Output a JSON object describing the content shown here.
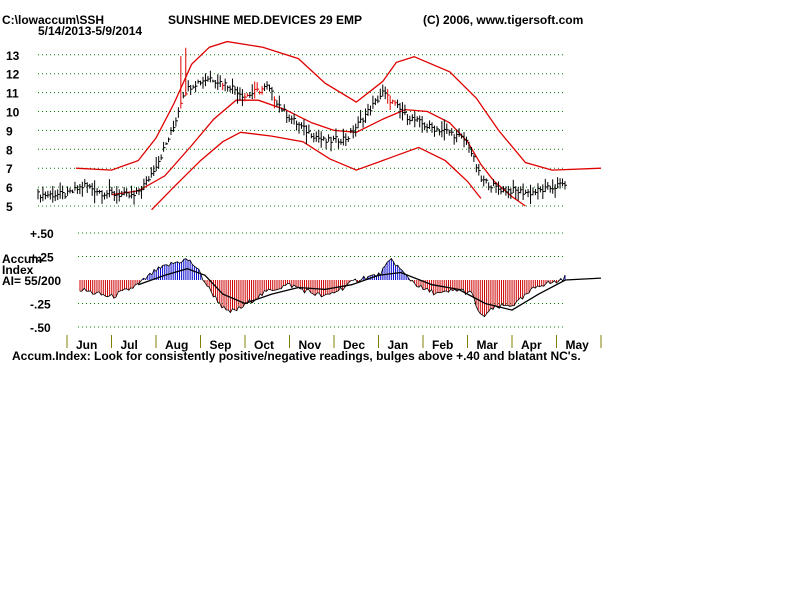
{
  "header": {
    "path": "C:\\lowaccum\\SSH",
    "date_range": "5/14/2013-5/9/2014",
    "title": "SUNSHINE MED.DEVICES 29 EMP",
    "copyright": "(C) 2006, www.tigersoft.com"
  },
  "colors": {
    "price_bars": "#000000",
    "up_spike": "#e00000",
    "bands": "#e00000",
    "moving_average": "#e00000",
    "grid": "#008000",
    "accum_positive": "#0000cc",
    "accum_negative": "#cc0000",
    "accum_ma": "#000000",
    "month_ticks": "#808000"
  },
  "chart_data": [
    {
      "type": "line",
      "name": "price",
      "y_ticks": [
        "5",
        "6",
        "7",
        "8",
        "9",
        "10",
        "11",
        "12",
        "13"
      ],
      "ylim": [
        5,
        13.9
      ],
      "grid": true,
      "x_labels": [
        "Jun",
        "Jul",
        "Aug",
        "Sep",
        "Oct",
        "Nov",
        "Dec",
        "Jan",
        "Feb",
        "Mar",
        "Apr",
        "May"
      ],
      "month_index": [
        0,
        1,
        2,
        3,
        4,
        5,
        6,
        7,
        8,
        9,
        10,
        11,
        12
      ],
      "close_knots": [
        5.6,
        6.1,
        5.7,
        5.6,
        5.5,
        6.3,
        7.6,
        9.2,
        10.9,
        11.4,
        11.8,
        11.3,
        10.8,
        11.3,
        9.9,
        9.1,
        8.4,
        8.6,
        9.8,
        11.0,
        9.8,
        9.2,
        8.9,
        8.4,
        6.4,
        5.9,
        5.7,
        5.9,
        6.2,
        5.6
      ],
      "knot_month_index": [
        0,
        0.4,
        0.8,
        1.2,
        1.5,
        1.8,
        2.1,
        2.4,
        2.6,
        2.8,
        3.2,
        3.7,
        4.0,
        4.5,
        4.9,
        5.3,
        5.8,
        6.3,
        6.7,
        7.1,
        7.6,
        8.1,
        8.6,
        9.0,
        9.3,
        9.7,
        10.4,
        10.8,
        11.2,
        11.6
      ],
      "upper_band": [
        [
          0.2,
          7.0
        ],
        [
          1.0,
          6.9
        ],
        [
          1.6,
          7.4
        ],
        [
          2.0,
          8.6
        ],
        [
          2.4,
          10.4
        ],
        [
          2.8,
          12.5
        ],
        [
          3.2,
          13.4
        ],
        [
          3.6,
          13.7
        ],
        [
          4.4,
          13.4
        ],
        [
          5.2,
          12.8
        ],
        [
          5.8,
          11.5
        ],
        [
          6.5,
          10.5
        ],
        [
          7.1,
          11.6
        ],
        [
          7.4,
          12.6
        ],
        [
          7.8,
          12.9
        ],
        [
          8.6,
          12.1
        ],
        [
          9.2,
          10.7
        ],
        [
          9.7,
          9.0
        ],
        [
          10.3,
          7.3
        ],
        [
          10.9,
          6.9
        ],
        [
          12.0,
          7.0
        ]
      ],
      "moving_average": [
        [
          1.0,
          5.6
        ],
        [
          1.6,
          5.8
        ],
        [
          2.2,
          6.6
        ],
        [
          2.8,
          8.2
        ],
        [
          3.3,
          9.6
        ],
        [
          3.8,
          10.6
        ],
        [
          4.3,
          10.6
        ],
        [
          4.9,
          10.1
        ],
        [
          5.5,
          9.4
        ],
        [
          6.0,
          9.0
        ],
        [
          6.5,
          8.9
        ],
        [
          7.1,
          9.6
        ],
        [
          7.6,
          10.1
        ],
        [
          8.1,
          10.0
        ],
        [
          8.6,
          9.4
        ],
        [
          9.0,
          8.4
        ],
        [
          9.3,
          7.2
        ],
        [
          9.6,
          6.3
        ],
        [
          10.0,
          5.5
        ],
        [
          10.3,
          5.0
        ]
      ],
      "lower_band": [
        [
          1.9,
          4.8
        ],
        [
          2.4,
          6.0
        ],
        [
          3.0,
          7.4
        ],
        [
          3.5,
          8.4
        ],
        [
          3.9,
          8.9
        ],
        [
          4.6,
          8.7
        ],
        [
          5.3,
          8.4
        ],
        [
          5.9,
          7.5
        ],
        [
          6.5,
          6.9
        ],
        [
          7.2,
          7.5
        ],
        [
          7.9,
          8.1
        ],
        [
          8.5,
          7.4
        ],
        [
          9.0,
          6.3
        ],
        [
          9.3,
          5.4
        ]
      ]
    },
    {
      "type": "bar",
      "name": "accumulation",
      "title": "Accum Index",
      "ai_label": "AI= 55/200",
      "y_ticks": [
        "+.50",
        "+.25",
        "-.25",
        "-.50"
      ],
      "ylim": [
        -0.53,
        0.53
      ],
      "knots": [
        [
          0.0,
          -0.05
        ],
        [
          0.3,
          -0.1
        ],
        [
          0.7,
          -0.15
        ],
        [
          1.0,
          -0.18
        ],
        [
          1.3,
          -0.12
        ],
        [
          1.6,
          -0.05
        ],
        [
          2.0,
          0.1
        ],
        [
          2.4,
          0.18
        ],
        [
          2.7,
          0.22
        ],
        [
          2.9,
          0.14
        ],
        [
          3.2,
          -0.1
        ],
        [
          3.6,
          -0.35
        ],
        [
          3.9,
          -0.3
        ],
        [
          4.2,
          -0.2
        ],
        [
          4.6,
          -0.1
        ],
        [
          5.0,
          -0.05
        ],
        [
          5.4,
          -0.12
        ],
        [
          5.8,
          -0.18
        ],
        [
          6.2,
          -0.08
        ],
        [
          6.6,
          0.02
        ],
        [
          7.0,
          0.05
        ],
        [
          7.3,
          0.22
        ],
        [
          7.6,
          0.05
        ],
        [
          8.0,
          -0.1
        ],
        [
          8.4,
          -0.15
        ],
        [
          8.8,
          -0.1
        ],
        [
          9.1,
          -0.15
        ],
        [
          9.3,
          -0.4
        ],
        [
          9.6,
          -0.3
        ],
        [
          10.1,
          -0.25
        ],
        [
          10.6,
          -0.05
        ],
        [
          11.0,
          -0.02
        ],
        [
          11.4,
          0.08
        ],
        [
          11.8,
          0.05
        ],
        [
          12.0,
          -0.06
        ]
      ],
      "ma_knots": [
        [
          1.6,
          -0.05
        ],
        [
          2.2,
          0.05
        ],
        [
          2.7,
          0.12
        ],
        [
          3.1,
          0.05
        ],
        [
          3.5,
          -0.15
        ],
        [
          4.0,
          -0.25
        ],
        [
          4.6,
          -0.15
        ],
        [
          5.2,
          -0.08
        ],
        [
          5.8,
          -0.1
        ],
        [
          6.4,
          -0.05
        ],
        [
          7.0,
          0.05
        ],
        [
          7.5,
          0.08
        ],
        [
          8.2,
          -0.05
        ],
        [
          8.8,
          -0.1
        ],
        [
          9.4,
          -0.25
        ],
        [
          10.0,
          -0.32
        ],
        [
          10.6,
          -0.15
        ],
        [
          11.2,
          0.0
        ],
        [
          12.0,
          0.02
        ]
      ]
    }
  ],
  "footer": {
    "note": "Accum.Index: Look for consistently positive/negative readings, bulges above +.40 and blatant NC's."
  }
}
